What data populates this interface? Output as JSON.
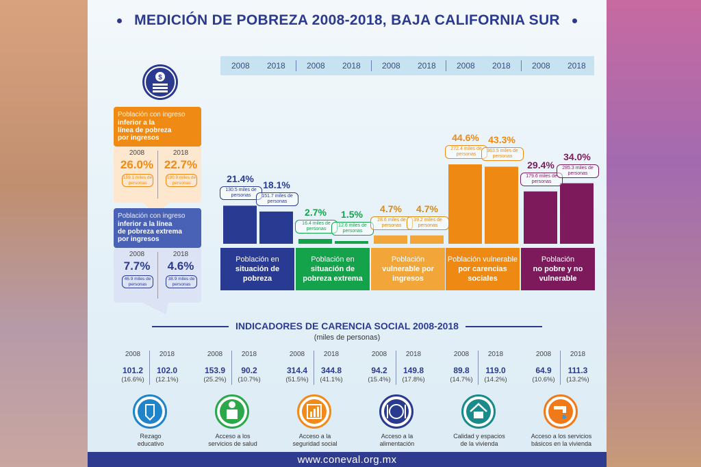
{
  "title": "MEDICIÓN DE POBREZA 2008-2018, BAJA CALIFORNIA SUR",
  "footer": "www.coneval.org.mx",
  "colors": {
    "navy": "#283a92",
    "green": "#14a24a",
    "lightorange": "#f2a63a",
    "orange": "#ee8a14",
    "purple": "#7d1a5c"
  },
  "chart_data": {
    "type": "bar",
    "categories": [
      "Población en situación de pobreza",
      "Población en situación de pobreza extrema",
      "Población vulnerable por ingresos",
      "Población vulnerable por carencias sociales",
      "Población no pobre y no vulnerable"
    ],
    "category_lines": [
      [
        "Población en",
        "situación de",
        "pobreza"
      ],
      [
        "Población en",
        "situación de",
        "pobreza extrema"
      ],
      [
        "Población",
        "vulnerable por",
        "ingresos"
      ],
      [
        "Población vulnerable",
        "por carencias",
        "sociales"
      ],
      [
        "Población",
        "no pobre y no",
        "vulnerable"
      ]
    ],
    "years": [
      "2008",
      "2018"
    ],
    "series": [
      {
        "name": "2008",
        "values": [
          21.4,
          2.7,
          4.7,
          44.6,
          29.4
        ],
        "labels": [
          "21.4%",
          "2.7%",
          "4.7%",
          "44.6%",
          "29.4%"
        ],
        "persons": [
          "130.5 miles de personas",
          "16.4 miles de personas",
          "28.6 miles de personas",
          "272.4 miles de personas",
          "179.6 miles de personas"
        ]
      },
      {
        "name": "2018",
        "values": [
          18.1,
          1.5,
          4.7,
          43.3,
          34.0
        ],
        "labels": [
          "18.1%",
          "1.5%",
          "4.7%",
          "43.3%",
          "34.0%"
        ],
        "persons": [
          "151.7 miles de personas",
          "12.6 miles de personas",
          "39.2 miles de personas",
          "363.5 miles de personas",
          "285.3 miles de personas"
        ]
      }
    ],
    "ylim": [
      0,
      50
    ]
  },
  "ingreso_boxes": [
    {
      "head_plain": "Población con ingreso",
      "head_bold": "inferior a la línea de pobreza por ingresos",
      "head_lines": [
        "inferior a la",
        "línea de pobreza",
        "por ingresos"
      ],
      "y1": "2008",
      "y2": "2018",
      "v1": "26.0%",
      "v2": "22.7%",
      "s1": "159.1 miles de personas",
      "s2": "190.9 miles de personas"
    },
    {
      "head_plain": "Población con ingreso",
      "head_bold": "inferior a la línea de pobreza extrema por ingresos",
      "head_lines": [
        "inferior a la línea",
        "de pobreza extrema",
        "por ingresos"
      ],
      "y1": "2008",
      "y2": "2018",
      "v1": "7.7%",
      "v2": "4.6%",
      "s1": "46.9 miles de personas",
      "s2": "38.9 miles de personas"
    }
  ],
  "indicadores": {
    "title": "INDICADORES DE CARENCIA SOCIAL 2008-2018",
    "subtitle": "(miles de personas)",
    "items": [
      {
        "label": "Rezago educativo",
        "lines": [
          "Rezago",
          "educativo"
        ],
        "y1": "2008",
        "y2": "2018",
        "v1": "101.2",
        "v2": "102.0",
        "p1": "(16.6%)",
        "p2": "(12.1%)",
        "color": "#1f84c9",
        "icon": "pencil-icon"
      },
      {
        "label": "Acceso a los servicios de salud",
        "lines": [
          "Acceso a los",
          "servicios de salud"
        ],
        "y1": "2008",
        "y2": "2018",
        "v1": "153.9",
        "v2": "90.2",
        "p1": "(25.2%)",
        "p2": "(10.7%)",
        "color": "#2aa84a",
        "icon": "doctor-icon"
      },
      {
        "label": "Acceso a la seguridad social",
        "lines": [
          "Acceso a la",
          "seguridad social"
        ],
        "y1": "2008",
        "y2": "2018",
        "v1": "314.4",
        "v2": "344.8",
        "p1": "(51.5%)",
        "p2": "(41.1%)",
        "color": "#f08a1a",
        "icon": "shield-icon"
      },
      {
        "label": "Acceso a la alimentación",
        "lines": [
          "Acceso a la",
          "alimentación"
        ],
        "y1": "2008",
        "y2": "2018",
        "v1": "94.2",
        "v2": "149.8",
        "p1": "(15.4%)",
        "p2": "(17.8%)",
        "color": "#2a3a8f",
        "icon": "plate-icon"
      },
      {
        "label": "Calidad y espacios de la vivienda",
        "lines": [
          "Calidad y espacios",
          "de la vivienda"
        ],
        "y1": "2008",
        "y2": "2018",
        "v1": "89.8",
        "v2": "119.0",
        "p1": "(14.7%)",
        "p2": "(14.2%)",
        "color": "#1a8a8a",
        "icon": "house-icon"
      },
      {
        "label": "Acceso a los servicios básicos en la vivienda",
        "lines": [
          "Acceso a los servicios",
          "básicos en la vivienda"
        ],
        "y1": "2008",
        "y2": "2018",
        "v1": "64.9",
        "v2": "111.3",
        "p1": "(10.6%)",
        "p2": "(13.2%)",
        "color": "#f07a1a",
        "icon": "faucet-icon"
      }
    ]
  }
}
